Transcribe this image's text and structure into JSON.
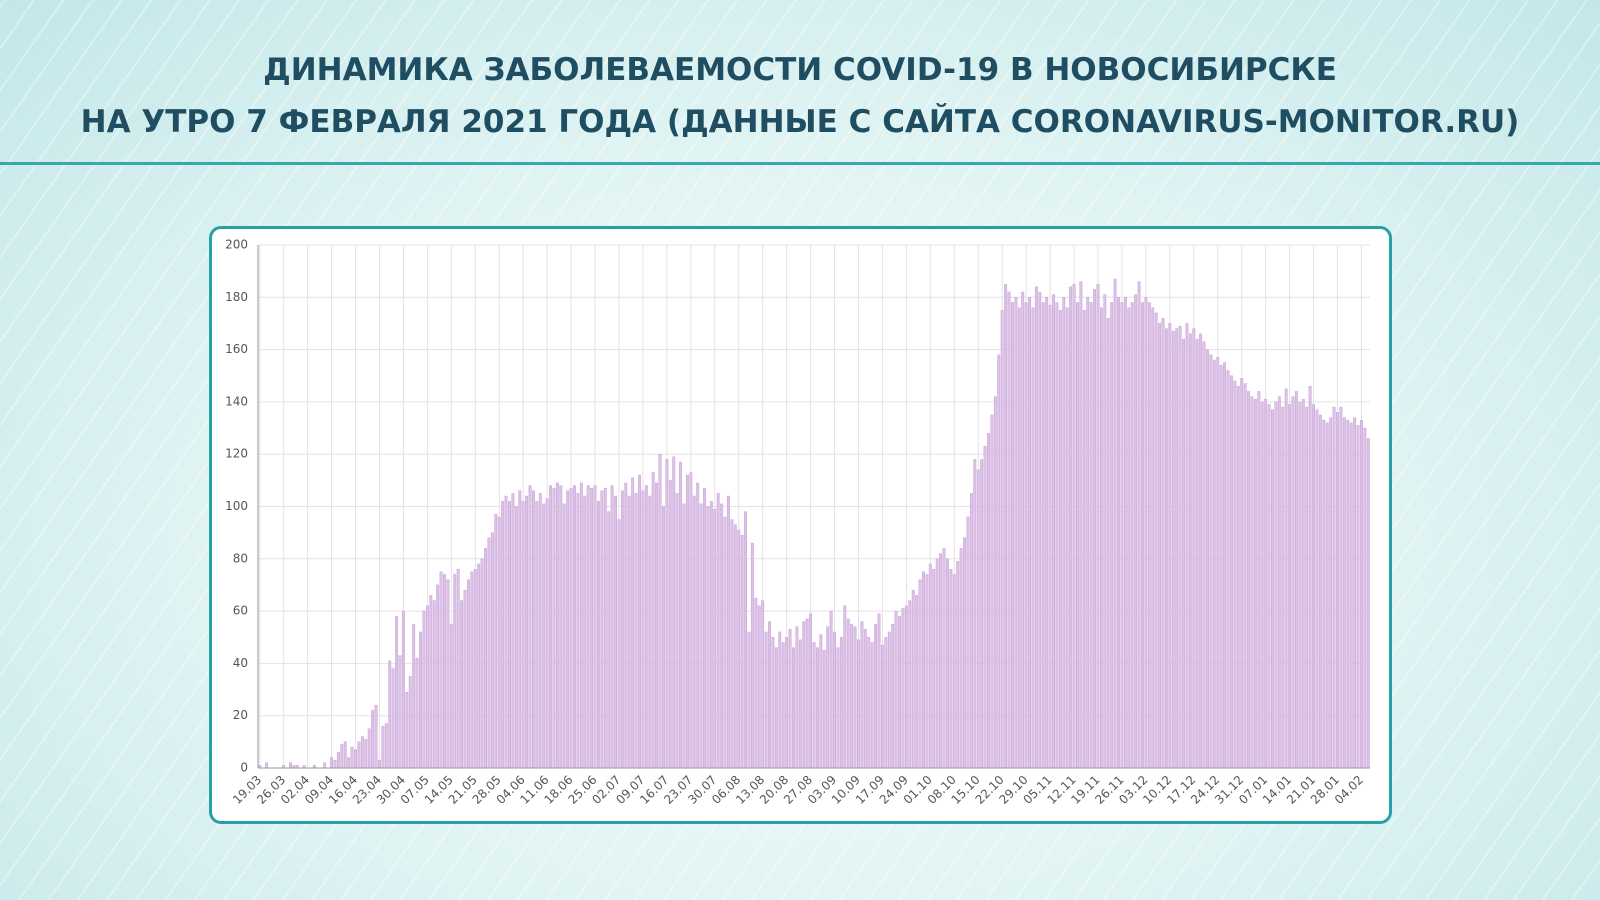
{
  "chart_data": {
    "type": "bar",
    "title": "ДИНАМИКА ЗАБОЛЕВАЕМОСТИ COVID-19 В НОВОСИБИРСКЕ",
    "subtitle": "НА УТРО 7 ФЕВРАЛЯ 2021 ГОДА (ДАННЫЕ С САЙТА CORONAVIRUS-MONITOR.RU)",
    "color": "#dcc2e6",
    "grid": true,
    "ylim": [
      0,
      200
    ],
    "yticks": [
      0,
      20,
      40,
      60,
      80,
      100,
      120,
      140,
      160,
      180,
      200
    ],
    "categories": [
      "19.03",
      null,
      null,
      null,
      null,
      null,
      null,
      "26.03",
      null,
      null,
      null,
      null,
      null,
      null,
      "02.04",
      null,
      null,
      null,
      null,
      null,
      null,
      "09.04",
      null,
      null,
      null,
      null,
      null,
      null,
      "16.04",
      null,
      null,
      null,
      null,
      null,
      null,
      "23.04",
      null,
      null,
      null,
      null,
      null,
      null,
      "30.04",
      null,
      null,
      null,
      null,
      null,
      null,
      "07.05",
      null,
      null,
      null,
      null,
      null,
      null,
      "14.05",
      null,
      null,
      null,
      null,
      null,
      null,
      "21.05",
      null,
      null,
      null,
      null,
      null,
      null,
      "28.05",
      null,
      null,
      null,
      null,
      null,
      null,
      "04.06",
      null,
      null,
      null,
      null,
      null,
      null,
      "11.06",
      null,
      null,
      null,
      null,
      null,
      null,
      "18.06",
      null,
      null,
      null,
      null,
      null,
      null,
      "25.06",
      null,
      null,
      null,
      null,
      null,
      null,
      "02.07",
      null,
      null,
      null,
      null,
      null,
      null,
      "09.07",
      null,
      null,
      null,
      null,
      null,
      null,
      "16.07",
      null,
      null,
      null,
      null,
      null,
      null,
      "23.07",
      null,
      null,
      null,
      null,
      null,
      null,
      "30.07",
      null,
      null,
      null,
      null,
      null,
      null,
      "06.08",
      null,
      null,
      null,
      null,
      null,
      null,
      "13.08",
      null,
      null,
      null,
      null,
      null,
      null,
      "20.08",
      null,
      null,
      null,
      null,
      null,
      null,
      "27.08",
      null,
      null,
      null,
      null,
      null,
      null,
      "03.09",
      null,
      null,
      null,
      null,
      null,
      null,
      "10.09",
      null,
      null,
      null,
      null,
      null,
      null,
      "17.09",
      null,
      null,
      null,
      null,
      null,
      null,
      "24.09",
      null,
      null,
      null,
      null,
      null,
      null,
      "01.10",
      null,
      null,
      null,
      null,
      null,
      null,
      "08.10",
      null,
      null,
      null,
      null,
      null,
      null,
      "15.10",
      null,
      null,
      null,
      null,
      null,
      null,
      "22.10",
      null,
      null,
      null,
      null,
      null,
      null,
      "29.10",
      null,
      null,
      null,
      null,
      null,
      null,
      "05.11",
      null,
      null,
      null,
      null,
      null,
      null,
      "12.11",
      null,
      null,
      null,
      null,
      null,
      null,
      "19.11",
      null,
      null,
      null,
      null,
      null,
      null,
      "26.11",
      null,
      null,
      null,
      null,
      null,
      null,
      "03.12",
      null,
      null,
      null,
      null,
      null,
      null,
      "10.12",
      null,
      null,
      null,
      null,
      null,
      null,
      "17.12",
      null,
      null,
      null,
      null,
      null,
      null,
      "24.12",
      null,
      null,
      null,
      null,
      null,
      null,
      "31.12",
      null,
      null,
      null,
      null,
      null,
      null,
      "07.01",
      null,
      null,
      null,
      null,
      null,
      null,
      "14.01",
      null,
      null,
      null,
      null,
      null,
      null,
      "21.01",
      null,
      null,
      null,
      null,
      null,
      null,
      "28.01",
      null,
      null,
      null,
      null,
      null,
      null,
      "04.02",
      null,
      null
    ],
    "values": [
      1,
      0,
      2,
      0,
      0,
      0,
      0,
      1,
      0,
      2,
      1,
      1,
      0,
      1,
      0,
      0,
      1,
      0,
      0,
      2,
      0,
      4,
      3,
      6,
      9,
      10,
      4,
      8,
      7,
      10,
      12,
      11,
      15,
      22,
      24,
      3,
      16,
      17,
      41,
      38,
      58,
      43,
      60,
      29,
      35,
      55,
      42,
      52,
      60,
      62,
      66,
      64,
      70,
      75,
      74,
      72,
      55,
      74,
      76,
      64,
      68,
      72,
      75,
      76,
      78,
      80,
      84,
      88,
      90,
      97,
      96,
      102,
      104,
      102,
      105,
      100,
      106,
      102,
      104,
      108,
      106,
      102,
      105,
      101,
      103,
      108,
      107,
      109,
      108,
      101,
      106,
      107,
      108,
      105,
      109,
      104,
      108,
      107,
      108,
      102,
      106,
      107,
      98,
      108,
      104,
      95,
      106,
      109,
      104,
      111,
      105,
      112,
      106,
      108,
      104,
      113,
      109,
      120,
      100,
      118,
      110,
      119,
      105,
      117,
      101,
      112,
      113,
      104,
      109,
      101,
      107,
      100,
      102,
      99,
      105,
      101,
      96,
      104,
      95,
      93,
      91,
      89,
      98,
      52,
      86,
      65,
      62,
      64,
      52,
      56,
      50,
      46,
      52,
      48,
      50,
      53,
      46,
      54,
      49,
      56,
      57,
      59,
      48,
      46,
      51,
      45,
      54,
      60,
      52,
      46,
      50,
      62,
      57,
      55,
      54,
      49,
      56,
      53,
      50,
      48,
      55,
      59,
      47,
      50,
      52,
      55,
      60,
      58,
      61,
      62,
      64,
      68,
      66,
      72,
      75,
      74,
      78,
      76,
      80,
      82,
      84,
      80,
      76,
      74,
      79,
      84,
      88,
      96,
      105,
      118,
      114,
      118,
      123,
      128,
      135,
      142,
      158,
      175,
      185,
      182,
      178,
      180,
      176,
      182,
      178,
      180,
      176,
      184,
      182,
      178,
      180,
      177,
      181,
      178,
      175,
      180,
      176,
      184,
      185,
      178,
      186,
      175,
      180,
      178,
      183,
      185,
      176,
      181,
      172,
      178,
      187,
      180,
      178,
      180,
      176,
      178,
      181,
      186,
      178,
      180,
      178,
      176,
      174,
      170,
      172,
      168,
      170,
      167,
      168,
      169,
      164,
      170,
      166,
      168,
      164,
      166,
      163,
      160,
      158,
      156,
      157,
      154,
      155,
      152,
      150,
      148,
      146,
      149,
      147,
      144,
      142,
      141,
      144,
      140,
      141,
      139,
      137,
      140,
      142,
      138,
      145,
      139,
      142,
      144,
      140,
      141,
      138,
      146,
      139,
      137,
      135,
      133,
      132,
      134,
      138,
      136,
      138,
      134,
      133,
      132,
      134,
      131,
      133,
      130,
      126
    ]
  }
}
